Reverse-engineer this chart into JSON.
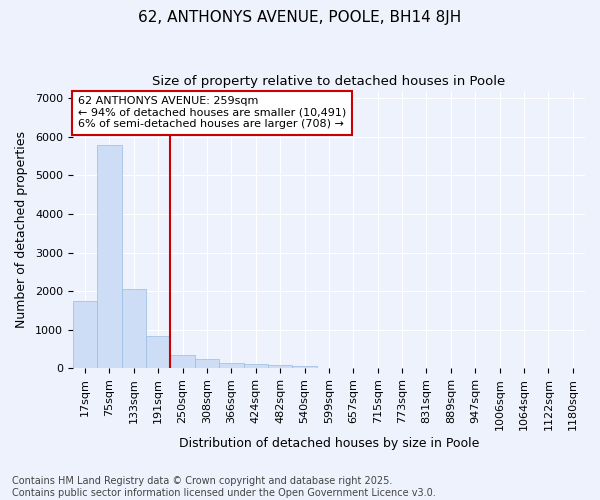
{
  "title1": "62, ANTHONYS AVENUE, POOLE, BH14 8JH",
  "title2": "Size of property relative to detached houses in Poole",
  "xlabel": "Distribution of detached houses by size in Poole",
  "ylabel": "Number of detached properties",
  "categories": [
    "17sqm",
    "75sqm",
    "133sqm",
    "191sqm",
    "250sqm",
    "308sqm",
    "366sqm",
    "424sqm",
    "482sqm",
    "540sqm",
    "599sqm",
    "657sqm",
    "715sqm",
    "773sqm",
    "831sqm",
    "889sqm",
    "947sqm",
    "1006sqm",
    "1064sqm",
    "1122sqm",
    "1180sqm"
  ],
  "values": [
    1750,
    5800,
    2050,
    850,
    350,
    230,
    130,
    100,
    75,
    50,
    20,
    5,
    2,
    0,
    0,
    0,
    0,
    0,
    0,
    0,
    0
  ],
  "bar_color": "#ccddf5",
  "bar_edge_color": "#9bbde0",
  "vline_x": 4.0,
  "vline_color": "#cc0000",
  "annotation_text": "62 ANTHONYS AVENUE: 259sqm\n← 94% of detached houses are smaller (10,491)\n6% of semi-detached houses are larger (708) →",
  "annotation_box_color": "#cc0000",
  "annotation_bg": "#ffffff",
  "ylim": [
    0,
    7200
  ],
  "yticks": [
    0,
    1000,
    2000,
    3000,
    4000,
    5000,
    6000,
    7000
  ],
  "background_color": "#eef2fc",
  "plot_bg_color": "#eef2fc",
  "footer": "Contains HM Land Registry data © Crown copyright and database right 2025.\nContains public sector information licensed under the Open Government Licence v3.0.",
  "title_fontsize": 11,
  "subtitle_fontsize": 9.5,
  "axis_label_fontsize": 9,
  "tick_fontsize": 8,
  "annotation_fontsize": 8,
  "footer_fontsize": 7
}
